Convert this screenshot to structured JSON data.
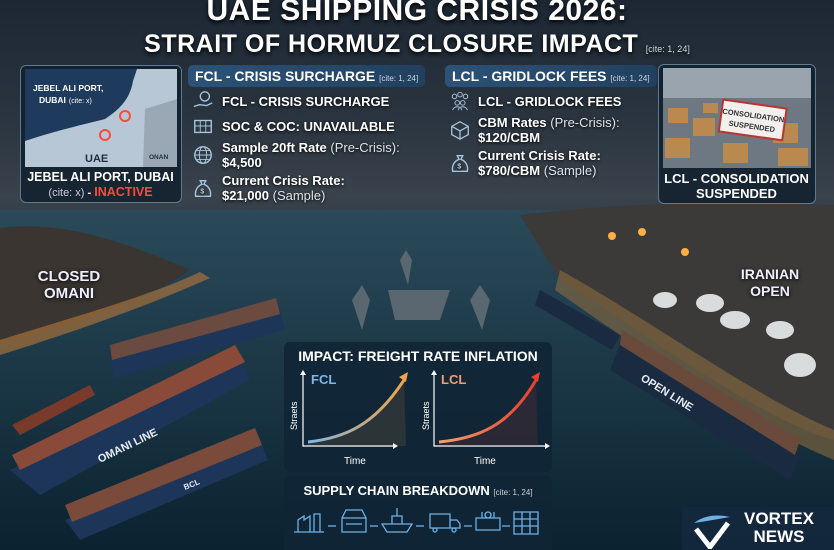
{
  "title": {
    "line1": "UAE SHIPPING CRISIS 2026:",
    "line2": "STRAIT OF HORMUZ CLOSURE IMPACT",
    "cite": "[cite: 1, 24]"
  },
  "map": {
    "label_port": "JEBEL ALI PORT,",
    "label_port2": "DUBAI",
    "label_cite": "(cite: x)",
    "label_uae": "UAE",
    "label_onan": "ONAN",
    "caption_line1": "JEBEL ALI PORT, DUBAI",
    "caption_cite": "(cite: x)",
    "caption_sep": " - ",
    "caption_status": "INACTIVE",
    "status_color": "#ff4a3a"
  },
  "fcl": {
    "header": "FCL - CRISIS SURCHARGE",
    "cite": "[cite: 1, 24]",
    "items": [
      {
        "icon": "hand-coin-icon",
        "bold": "FCL - CRISIS SURCHARGE",
        "normal": ""
      },
      {
        "icon": "containers-icon",
        "bold": "SOC & COC: UNAVAILABLE",
        "normal": ""
      },
      {
        "icon": "globe-icon",
        "bold": "Sample 20ft Rate",
        "normal": " (Pre-Crisis):",
        "bold2": "$4,500",
        "normal2": ""
      },
      {
        "icon": "money-bag-icon",
        "bold": "Current Crisis Rate:",
        "normal": "",
        "bold2": "$21,000",
        "normal2": " (Sample)"
      }
    ]
  },
  "lcl": {
    "header": "LCL - GRIDLOCK FEES",
    "cite": "[cite: 1, 24]",
    "items": [
      {
        "icon": "people-group-icon",
        "bold": "LCL - GRIDLOCK FEES",
        "normal": ""
      },
      {
        "icon": "box-icon",
        "bold": "CBM Rates",
        "normal": " (Pre-Crisis):",
        "bold2": "$120/CBM",
        "normal2": ""
      },
      {
        "icon": "money-bag-icon",
        "bold": "Current Crisis Rate:",
        "normal": "",
        "bold2": "$780/CBM",
        "normal2": " (Sample)"
      }
    ],
    "photo_sign_line1": "CONSOLIDATION",
    "photo_sign_line2": "SUSPENDED",
    "caption_line1": "LCL - CONSOLIDATION",
    "caption_line2": "SUSPENDED"
  },
  "regions": {
    "left_line1": "CLOSED",
    "left_line2": "OMANI",
    "right_line1": "IRANIAN",
    "right_line2": "OPEN"
  },
  "ships": {
    "omani": "OMANI LINE",
    "bcl": "BCL",
    "open": "OPEN LINE"
  },
  "impact": {
    "title": "IMPACT: FREIGHT RATE INFLATION",
    "charts": [
      {
        "label": "FCL",
        "ylabel": "Straets",
        "xlabel": "Time",
        "color_start": "#7fb6e6",
        "color_end": "#f0a34a"
      },
      {
        "label": "LCL",
        "ylabel": "Straets",
        "xlabel": "Time",
        "color_start": "#f0a070",
        "color_end": "#e8402a"
      }
    ]
  },
  "supply": {
    "title": "SUPPLY CHAIN BREAKDOWN",
    "cite": "[cite: 1, 24]",
    "steps": [
      "factory-icon",
      "port-terminal-icon",
      "cargo-ship-icon",
      "truck-icon",
      "customs-icon",
      "warehouse-icon"
    ]
  },
  "logo": {
    "line1": "VORTEX",
    "line2": "NEWS"
  }
}
